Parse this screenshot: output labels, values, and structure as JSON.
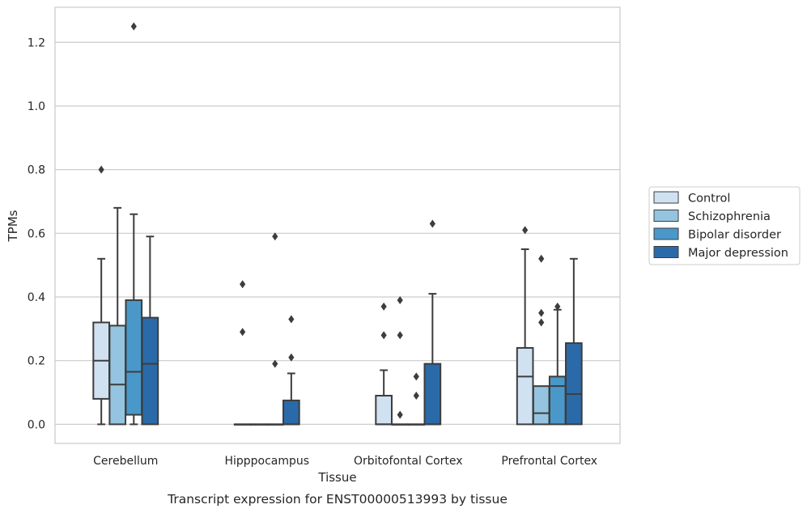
{
  "chart_data": {
    "type": "boxplot",
    "xlabel": "Tissue",
    "ylabel": "TPMs",
    "caption": "Transcript expression for ENST00000513993 by tissue",
    "ylim": [
      -0.06,
      1.31
    ],
    "yticks": [
      "0.0",
      "0.2",
      "0.4",
      "0.6",
      "0.8",
      "1.0",
      "1.2"
    ],
    "ytick_values": [
      0,
      0.2,
      0.4,
      0.6,
      0.8,
      1.0,
      1.2
    ],
    "grid": "horizontal",
    "legend_position": "right",
    "categories": [
      "Cerebellum",
      "Hipppocampus",
      "Orbitofontal Cortex",
      "Prefrontal Cortex"
    ],
    "series": [
      {
        "name": "Control",
        "color": "#d0e1f2",
        "boxes": [
          {
            "q1": 0.08,
            "median": 0.2,
            "q3": 0.32,
            "whisker_low": 0.0,
            "whisker_high": 0.52,
            "outliers": [
              0.8
            ]
          },
          {
            "q1": 0.0,
            "median": 0.0,
            "q3": 0.0,
            "whisker_low": 0.0,
            "whisker_high": 0.0,
            "outliers": [
              0.29,
              0.44
            ]
          },
          {
            "q1": 0.0,
            "median": 0.0,
            "q3": 0.09,
            "whisker_low": 0.0,
            "whisker_high": 0.17,
            "outliers": [
              0.28,
              0.37
            ]
          },
          {
            "q1": 0.0,
            "median": 0.15,
            "q3": 0.24,
            "whisker_low": 0.0,
            "whisker_high": 0.55,
            "outliers": [
              0.61
            ]
          }
        ]
      },
      {
        "name": "Schizophrenia",
        "color": "#94c4df",
        "boxes": [
          {
            "q1": 0.0,
            "median": 0.125,
            "q3": 0.31,
            "whisker_low": 0.0,
            "whisker_high": 0.68,
            "outliers": []
          },
          {
            "q1": 0.0,
            "median": 0.0,
            "q3": 0.0,
            "whisker_low": 0.0,
            "whisker_high": 0.0,
            "outliers": []
          },
          {
            "q1": 0.0,
            "median": 0.0,
            "q3": 0.0,
            "whisker_low": 0.0,
            "whisker_high": 0.0,
            "outliers": [
              0.03,
              0.28,
              0.39
            ]
          },
          {
            "q1": 0.0,
            "median": 0.035,
            "q3": 0.12,
            "whisker_low": 0.0,
            "whisker_high": 0.12,
            "outliers": [
              0.32,
              0.35,
              0.52
            ]
          }
        ]
      },
      {
        "name": "Bipolar disorder",
        "color": "#4a98c9",
        "boxes": [
          {
            "q1": 0.03,
            "median": 0.165,
            "q3": 0.39,
            "whisker_low": 0.0,
            "whisker_high": 0.66,
            "outliers": [
              1.25
            ]
          },
          {
            "q1": 0.0,
            "median": 0.0,
            "q3": 0.0,
            "whisker_low": 0.0,
            "whisker_high": 0.0,
            "outliers": [
              0.19,
              0.59
            ]
          },
          {
            "q1": 0.0,
            "median": 0.0,
            "q3": 0.0,
            "whisker_low": 0.0,
            "whisker_high": 0.0,
            "outliers": [
              0.09,
              0.15
            ]
          },
          {
            "q1": 0.0,
            "median": 0.12,
            "q3": 0.15,
            "whisker_low": 0.0,
            "whisker_high": 0.36,
            "outliers": [
              0.37
            ]
          }
        ]
      },
      {
        "name": "Major depression",
        "color": "#2b6aa8",
        "boxes": [
          {
            "q1": 0.0,
            "median": 0.19,
            "q3": 0.335,
            "whisker_low": 0.0,
            "whisker_high": 0.59,
            "outliers": []
          },
          {
            "q1": 0.0,
            "median": 0.0,
            "q3": 0.075,
            "whisker_low": 0.0,
            "whisker_high": 0.16,
            "outliers": [
              0.21,
              0.33
            ]
          },
          {
            "q1": 0.0,
            "median": 0.0,
            "q3": 0.19,
            "whisker_low": 0.0,
            "whisker_high": 0.41,
            "outliers": [
              0.63
            ]
          },
          {
            "q1": 0.0,
            "median": 0.095,
            "q3": 0.255,
            "whisker_low": 0.0,
            "whisker_high": 0.52,
            "outliers": []
          }
        ]
      }
    ]
  }
}
